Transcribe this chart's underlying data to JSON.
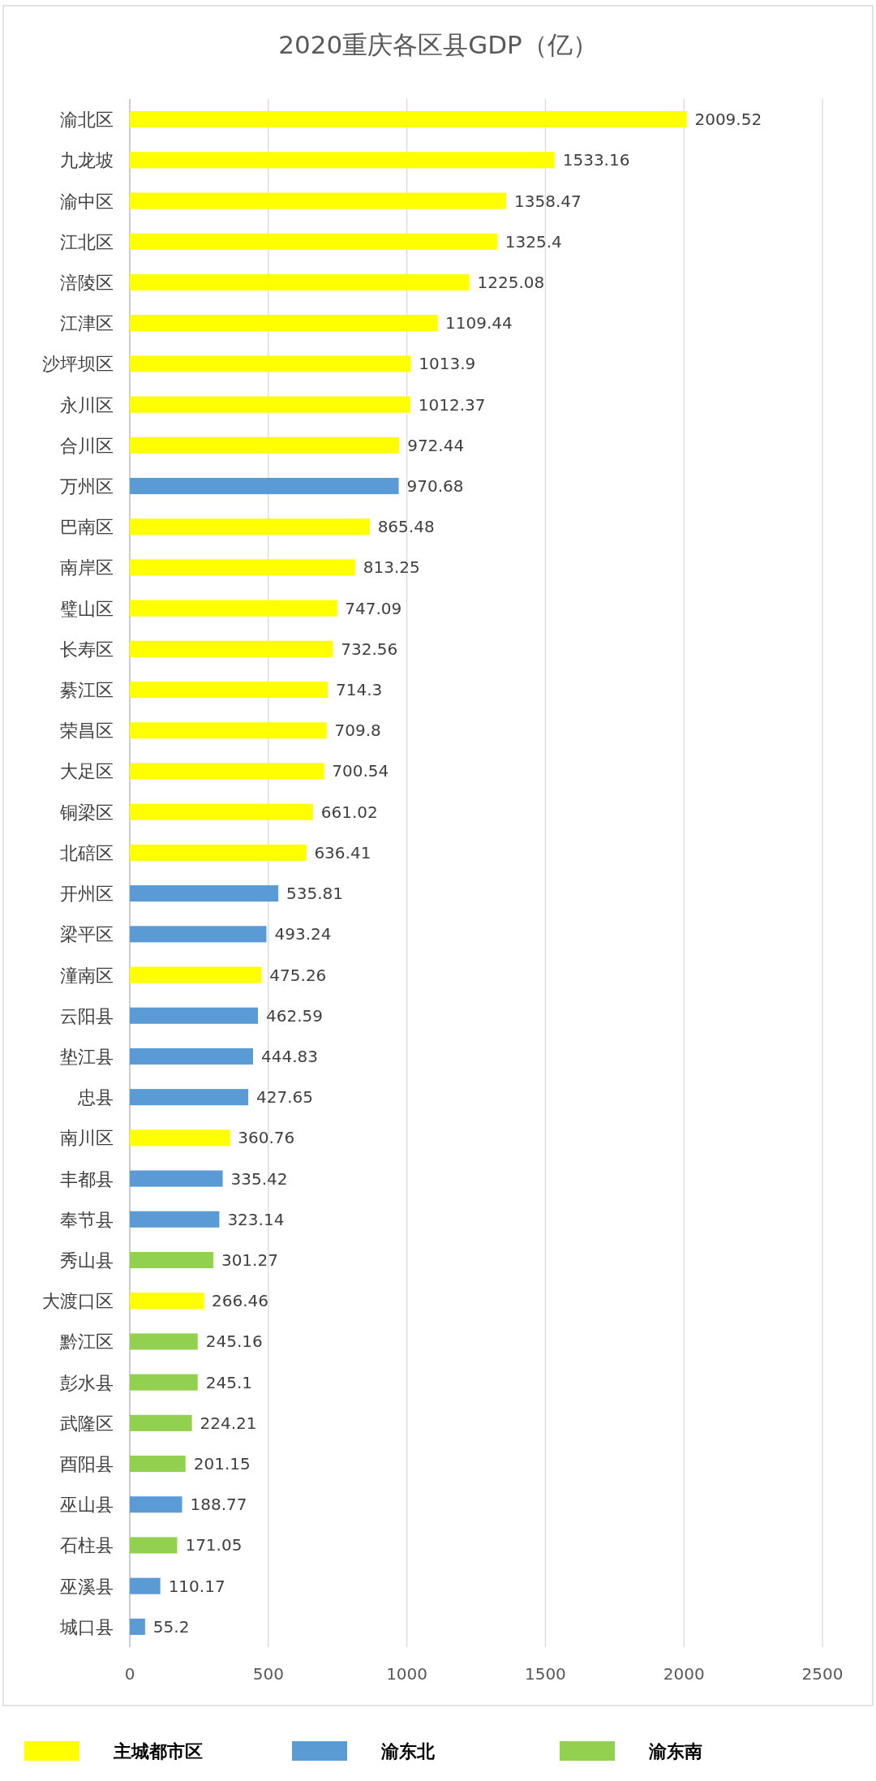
{
  "chart_data": {
    "type": "bar",
    "orientation": "horizontal",
    "title": "2020重庆各区县GDP（亿）",
    "categories": [
      "渝北区",
      "九龙坡",
      "渝中区",
      "江北区",
      "涪陵区",
      "江津区",
      "沙坪坝区",
      "永川区",
      "合川区",
      "万州区",
      "巴南区",
      "南岸区",
      "璧山区",
      "长寿区",
      "綦江区",
      "荣昌区",
      "大足区",
      "铜梁区",
      "北碚区",
      "开州区",
      "梁平区",
      "潼南区",
      "云阳县",
      "垫江县",
      "忠县",
      "南川区",
      "丰都县",
      "奉节县",
      "秀山县",
      "大渡口区",
      "黔江区",
      "彭水县",
      "武隆区",
      "酉阳县",
      "巫山县",
      "石柱县",
      "巫溪县",
      "城口县"
    ],
    "series": [
      {
        "name": "主城都市区",
        "color": "#ffff00",
        "values": [
          2009.52,
          1533.16,
          1358.47,
          1325.4,
          1225.08,
          1109.44,
          1013.9,
          1012.37,
          972.44,
          null,
          865.48,
          813.25,
          747.09,
          732.56,
          714.3,
          709.8,
          700.54,
          661.02,
          636.41,
          null,
          null,
          475.26,
          null,
          null,
          null,
          360.76,
          null,
          null,
          null,
          266.46,
          null,
          null,
          null,
          null,
          null,
          null,
          null,
          null
        ]
      },
      {
        "name": "渝东北",
        "color": "#5b9bd5",
        "values": [
          null,
          null,
          null,
          null,
          null,
          null,
          null,
          null,
          null,
          970.68,
          null,
          null,
          null,
          null,
          null,
          null,
          null,
          null,
          null,
          535.81,
          493.24,
          null,
          462.59,
          444.83,
          427.65,
          null,
          335.42,
          323.14,
          null,
          null,
          null,
          null,
          null,
          null,
          188.77,
          null,
          110.17,
          55.2
        ]
      },
      {
        "name": "渝东南",
        "color": "#92d050",
        "values": [
          null,
          null,
          null,
          null,
          null,
          null,
          null,
          null,
          null,
          null,
          null,
          null,
          null,
          null,
          null,
          null,
          null,
          null,
          null,
          null,
          null,
          null,
          null,
          null,
          null,
          null,
          null,
          null,
          301.27,
          null,
          245.16,
          245.1,
          224.21,
          201.15,
          null,
          171.05,
          null,
          null
        ]
      }
    ],
    "xlim": [
      0,
      2500
    ],
    "xticks": [
      0,
      500,
      1000,
      1500,
      2000,
      2500
    ],
    "grid": "x",
    "legend": "bottom",
    "data_labels": true
  }
}
